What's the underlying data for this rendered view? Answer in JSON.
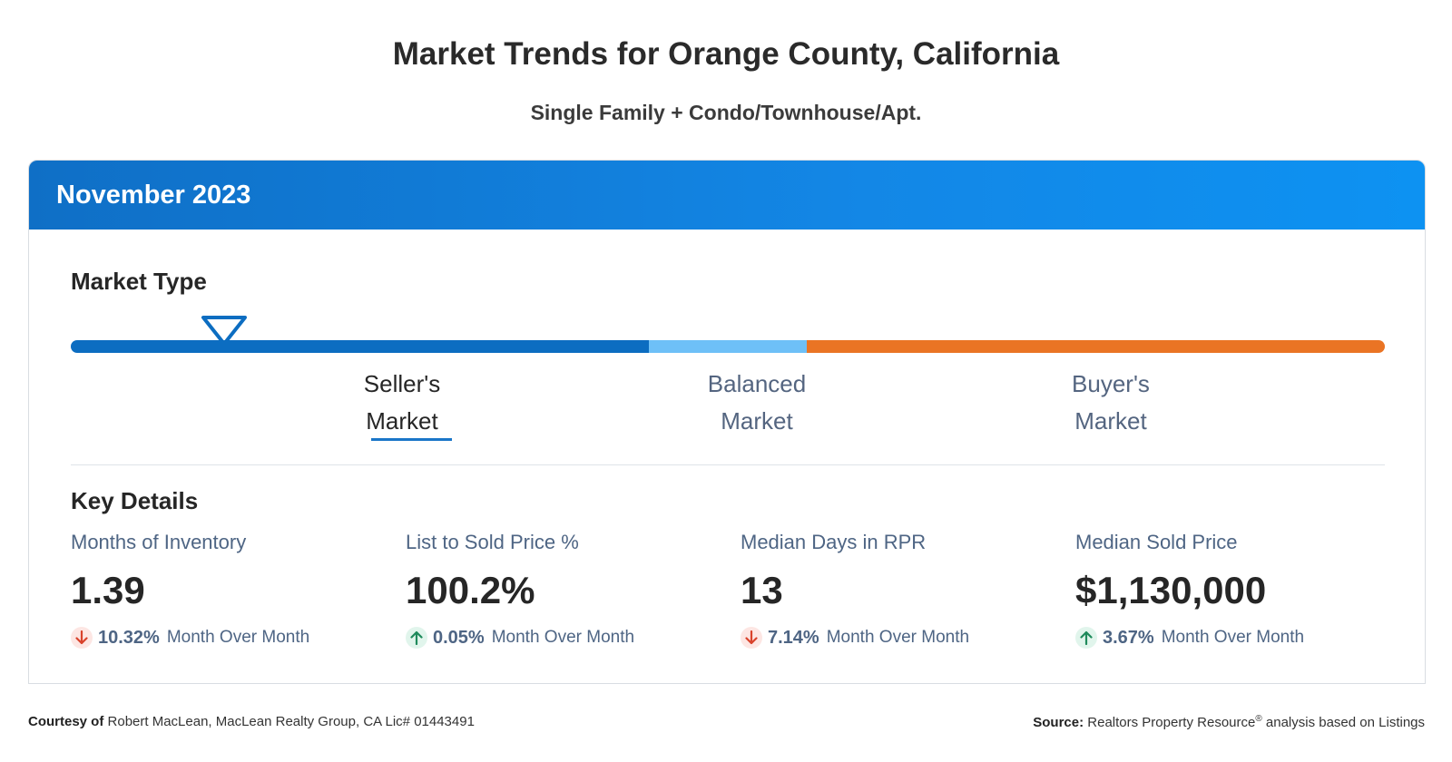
{
  "page": {
    "title": "Market Trends for Orange County, California",
    "subtitle": "Single Family + Condo/Townhouse/Apt."
  },
  "card": {
    "period": "November 2023",
    "market_type": {
      "title": "Market Type",
      "indicator_position": 0.12,
      "indicator_icon": "triangle-down-icon",
      "labels": [
        {
          "line1": "Seller's",
          "line2": "Market",
          "active": true
        },
        {
          "line1": "Balanced",
          "line2": "Market",
          "active": false
        },
        {
          "line1": "Buyer's",
          "line2": "Market",
          "active": false
        }
      ],
      "colors": {
        "seller": "#0c6dc1",
        "balanced": "#6ec0f7",
        "buyer": "#ea7424"
      }
    },
    "key_details": {
      "title": "Key Details",
      "metrics": [
        {
          "label": "Months of Inventory",
          "value": "1.39",
          "direction": "down",
          "icon": "arrow-down-icon",
          "change": "10.32%",
          "suffix": "Month Over Month"
        },
        {
          "label": "List to Sold Price %",
          "value": "100.2%",
          "direction": "up",
          "icon": "arrow-up-icon",
          "change": "0.05%",
          "suffix": "Month Over Month"
        },
        {
          "label": "Median Days in RPR",
          "value": "13",
          "direction": "down",
          "icon": "arrow-down-icon",
          "change": "7.14%",
          "suffix": "Month Over Month"
        },
        {
          "label": "Median Sold Price",
          "value": "$1,130,000",
          "direction": "up",
          "icon": "arrow-up-icon",
          "change": "3.67%",
          "suffix": "Month Over Month"
        }
      ]
    }
  },
  "footer": {
    "courtesy_label": "Courtesy of",
    "courtesy_text": "Robert MacLean, MacLean Realty Group, CA Lic# 01443491",
    "source_label": "Source:",
    "source_text_1": "Realtors Property Resource",
    "source_mark": "®",
    "source_text_2": "analysis based on Listings"
  }
}
